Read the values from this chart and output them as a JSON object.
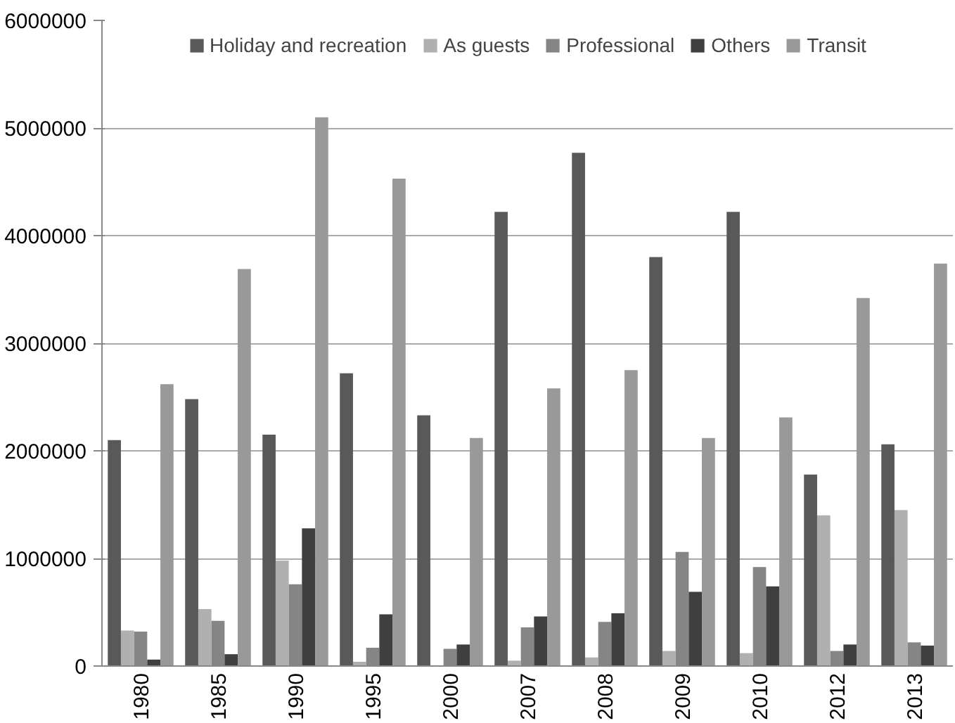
{
  "chart_data": {
    "type": "bar",
    "categories": [
      "1980",
      "1985",
      "1990",
      "1995",
      "2000",
      "2007",
      "2008",
      "2009",
      "2010",
      "2012",
      "2013"
    ],
    "series": [
      {
        "name": "Holiday and recreation",
        "color": "#595959",
        "values": [
          2100000,
          2480000,
          2150000,
          2720000,
          2330000,
          4220000,
          4770000,
          3800000,
          4220000,
          1780000,
          2060000
        ]
      },
      {
        "name": "As guests",
        "color": "#b0b0b0",
        "values": [
          330000,
          530000,
          980000,
          40000,
          null,
          50000,
          80000,
          140000,
          120000,
          1400000,
          1450000
        ]
      },
      {
        "name": "Professional",
        "color": "#858585",
        "values": [
          320000,
          420000,
          760000,
          170000,
          160000,
          360000,
          410000,
          1060000,
          920000,
          140000,
          220000
        ]
      },
      {
        "name": "Others",
        "color": "#3f3f3f",
        "values": [
          60000,
          110000,
          1280000,
          480000,
          200000,
          460000,
          490000,
          690000,
          740000,
          200000,
          190000
        ]
      },
      {
        "name": "Transit",
        "color": "#999999",
        "values": [
          2620000,
          3690000,
          5100000,
          4530000,
          2120000,
          2580000,
          2750000,
          2120000,
          2310000,
          3420000,
          3740000
        ]
      }
    ],
    "ylim": [
      0,
      6000000
    ],
    "yticks": [
      0,
      1000000,
      2000000,
      3000000,
      4000000,
      5000000,
      6000000
    ],
    "grid": "y",
    "legend": "top"
  }
}
